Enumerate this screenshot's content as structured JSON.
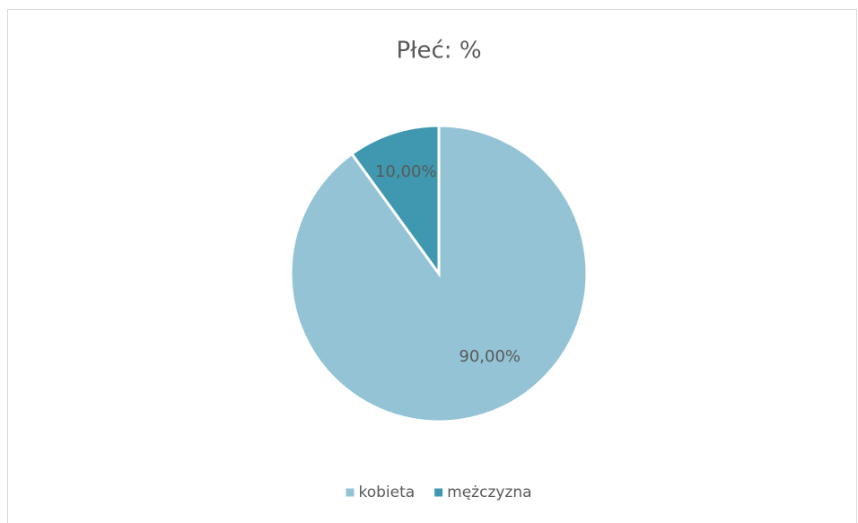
{
  "chart_data": {
    "type": "pie",
    "title": "Płeć: %",
    "categories": [
      "kobieta",
      "mężczyzna"
    ],
    "values": [
      90,
      10
    ],
    "value_labels": [
      "90,00%",
      "10,00%"
    ],
    "colors": [
      "#93c3d5",
      "#3f98b0"
    ],
    "legend": "bottom"
  }
}
